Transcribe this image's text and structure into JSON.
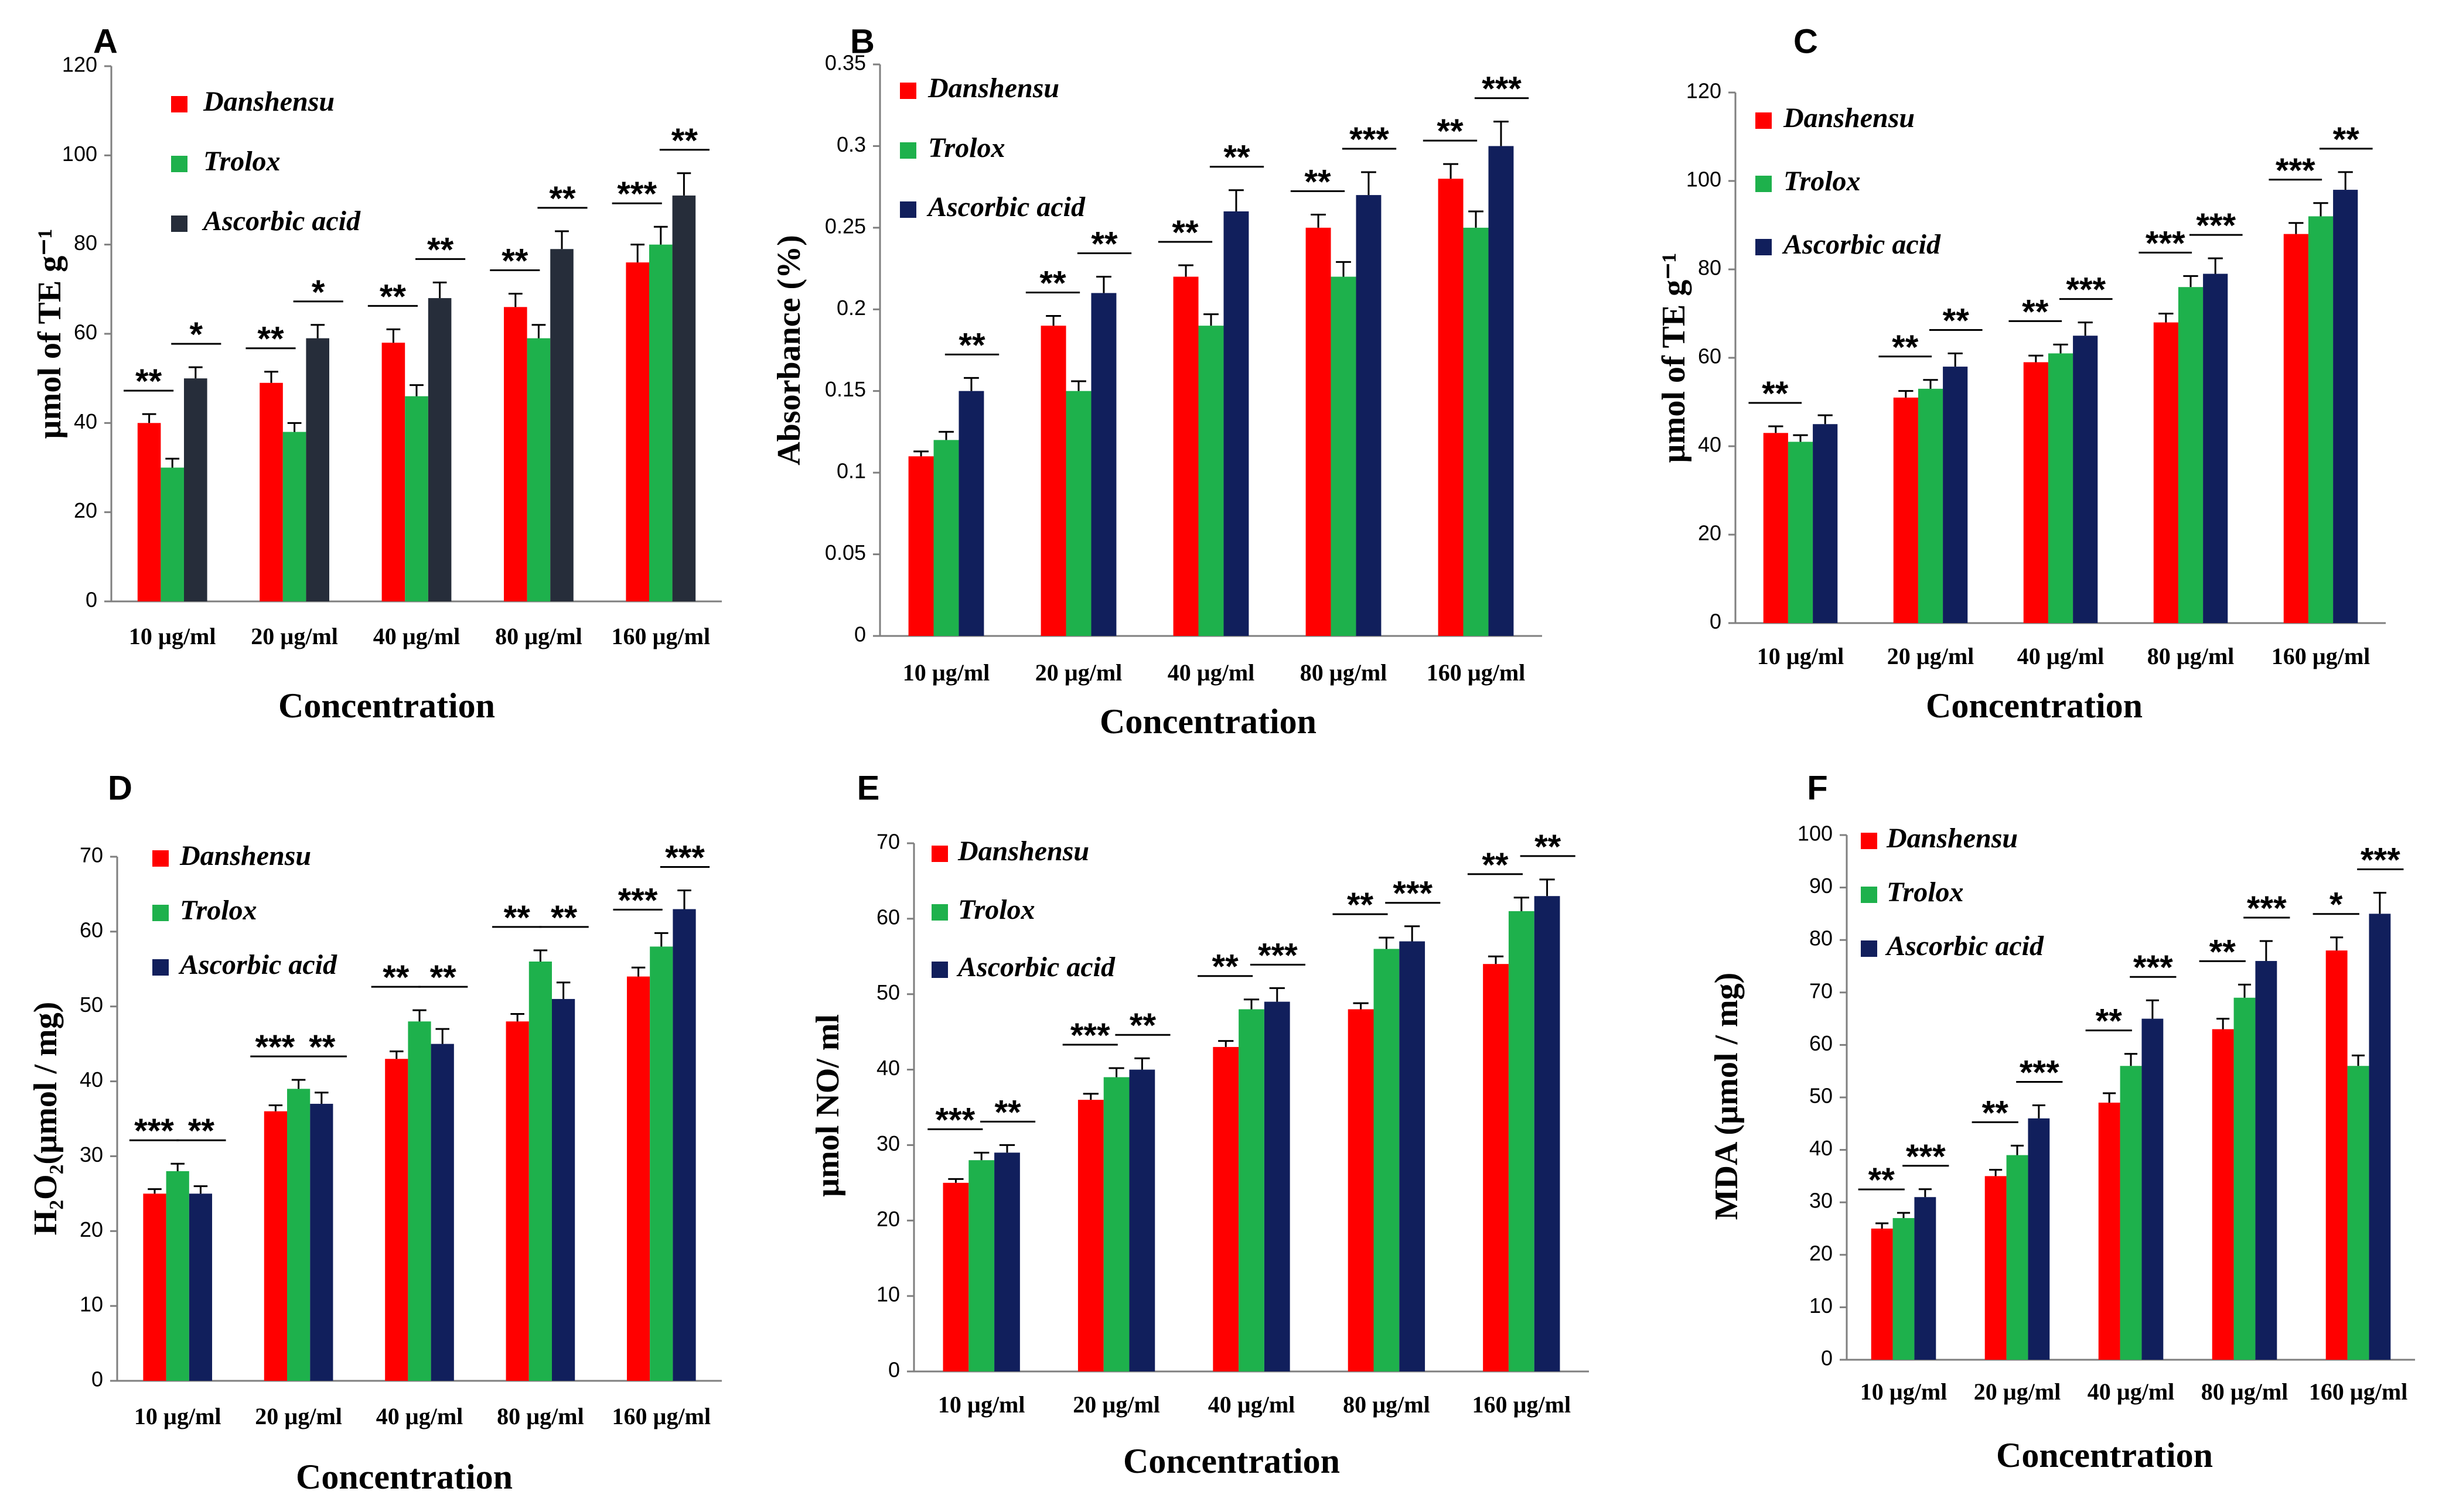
{
  "figure": {
    "colors": [
      "#ff0000",
      "#1eb14c",
      "#111f5c"
    ],
    "colors_A": [
      "#ff0000",
      "#1eb14c",
      "#262d3a"
    ]
  },
  "chart_data": [
    {
      "panel": "A",
      "type": "bar",
      "title": "",
      "xlabel": "Concentration",
      "ylabel": "µmol of TE g⁻¹",
      "ylim": [
        0,
        120
      ],
      "ystep": 20,
      "ytick_labels": [
        "0",
        "20",
        "40",
        "60",
        "80",
        "100",
        "120"
      ],
      "categories": [
        "10 µg/ml",
        "20 µg/ml",
        "40 µg/ml",
        "80 µg/ml",
        "160 µg/ml"
      ],
      "series": [
        {
          "name": "Danshensu",
          "values": [
            40,
            49,
            58,
            66,
            76
          ],
          "errors": [
            2,
            2.5,
            3,
            3,
            4
          ]
        },
        {
          "name": "Trolox",
          "values": [
            30,
            38,
            46,
            59,
            80
          ],
          "errors": [
            2,
            2,
            2.5,
            3,
            4
          ]
        },
        {
          "name": "Ascorbic acid",
          "values": [
            50,
            59,
            68,
            79,
            91
          ],
          "errors": [
            2.5,
            3,
            3.5,
            4,
            5
          ]
        }
      ],
      "significance": [
        [
          "**",
          "*"
        ],
        [
          "**",
          "*"
        ],
        [
          "**",
          "**"
        ],
        [
          "**",
          "**"
        ],
        [
          "***",
          "**"
        ]
      ]
    },
    {
      "panel": "B",
      "type": "bar",
      "title": "",
      "xlabel": "Concentration",
      "ylabel": "Absorbance (%)",
      "ylim": [
        0,
        0.35
      ],
      "ystep": 0.05,
      "ytick_labels": [
        "0",
        "0.05",
        "0.1",
        "0.15",
        "0.2",
        "0.25",
        "0.3",
        "0.35"
      ],
      "categories": [
        "10 µg/ml",
        "20 µg/ml",
        "40 µg/ml",
        "80 µg/ml",
        "160 µg/ml"
      ],
      "series": [
        {
          "name": "Danshensu",
          "values": [
            0.11,
            0.19,
            0.22,
            0.25,
            0.28
          ],
          "errors": [
            0.003,
            0.006,
            0.007,
            0.008,
            0.009
          ]
        },
        {
          "name": "Trolox",
          "values": [
            0.12,
            0.15,
            0.19,
            0.22,
            0.25
          ],
          "errors": [
            0.005,
            0.006,
            0.007,
            0.009,
            0.01
          ]
        },
        {
          "name": "Ascorbic acid",
          "values": [
            0.15,
            0.21,
            0.26,
            0.27,
            0.3
          ],
          "errors": [
            0.008,
            0.01,
            0.013,
            0.014,
            0.015
          ]
        }
      ],
      "significance": [
        [
          null,
          "**"
        ],
        [
          "**",
          "**"
        ],
        [
          "**",
          "**"
        ],
        [
          "**",
          "***"
        ],
        [
          "**",
          "***"
        ]
      ]
    },
    {
      "panel": "C",
      "type": "bar",
      "title": "",
      "xlabel": "Concentration",
      "ylabel": "µmol of TE g⁻¹",
      "ylim": [
        0,
        120
      ],
      "ystep": 20,
      "ytick_labels": [
        "0",
        "20",
        "40",
        "60",
        "80",
        "100",
        "120"
      ],
      "categories": [
        "10 µg/ml",
        "20 µg/ml",
        "40 µg/ml",
        "80 µg/ml",
        "160 µg/ml"
      ],
      "series": [
        {
          "name": "Danshensu",
          "values": [
            43,
            51,
            59,
            68,
            88
          ],
          "errors": [
            1.5,
            1.5,
            1.5,
            2,
            2.5
          ]
        },
        {
          "name": "Trolox",
          "values": [
            41,
            53,
            61,
            76,
            92
          ],
          "errors": [
            1.5,
            2,
            2,
            2.5,
            3
          ]
        },
        {
          "name": "Ascorbic acid",
          "values": [
            45,
            58,
            65,
            79,
            98
          ],
          "errors": [
            2,
            3,
            3,
            3.5,
            4
          ]
        }
      ],
      "significance": [
        [
          "**",
          null
        ],
        [
          "**",
          "**"
        ],
        [
          "**",
          "***"
        ],
        [
          "***",
          "***"
        ],
        [
          "***",
          "**"
        ]
      ]
    },
    {
      "panel": "D",
      "type": "bar",
      "title": "",
      "xlabel": "Concentration",
      "ylabel": "H₂O₂(µmol / mg)",
      "ylim": [
        0,
        70
      ],
      "ystep": 10,
      "ytick_labels": [
        "0",
        "10",
        "20",
        "30",
        "40",
        "50",
        "60",
        "70"
      ],
      "categories": [
        "10 µg/ml",
        "20 µg/ml",
        "40 µg/ml",
        "80 µg/ml",
        "160 µg/ml"
      ],
      "series": [
        {
          "name": "Danshensu",
          "values": [
            25,
            36,
            43,
            48,
            54
          ],
          "errors": [
            0.6,
            0.8,
            1,
            1,
            1.2
          ]
        },
        {
          "name": "Trolox",
          "values": [
            28,
            39,
            48,
            56,
            58
          ],
          "errors": [
            1,
            1.2,
            1.5,
            1.5,
            1.8
          ]
        },
        {
          "name": "Ascorbic acid",
          "values": [
            25,
            37,
            45,
            51,
            63
          ],
          "errors": [
            1,
            1.5,
            2,
            2.2,
            2.5
          ]
        }
      ],
      "significance": [
        [
          "***",
          "**"
        ],
        [
          "***",
          "**"
        ],
        [
          "**",
          "**"
        ],
        [
          "**",
          "**"
        ],
        [
          "***",
          "***"
        ]
      ]
    },
    {
      "panel": "E",
      "type": "bar",
      "title": "",
      "xlabel": "Concentration",
      "ylabel": "µmol NO/ ml",
      "ylim": [
        0,
        70
      ],
      "ystep": 10,
      "ytick_labels": [
        "0",
        "10",
        "20",
        "30",
        "40",
        "50",
        "60",
        "70"
      ],
      "categories": [
        "10 µg/ml",
        "20 µg/ml",
        "40 µg/ml",
        "80 µg/ml",
        "160 µg/ml"
      ],
      "series": [
        {
          "name": "Danshensu",
          "values": [
            25,
            36,
            43,
            48,
            54
          ],
          "errors": [
            0.5,
            0.8,
            0.8,
            0.8,
            1
          ]
        },
        {
          "name": "Trolox",
          "values": [
            28,
            39,
            48,
            56,
            61
          ],
          "errors": [
            1,
            1.2,
            1.3,
            1.5,
            1.8
          ]
        },
        {
          "name": "Ascorbic acid",
          "values": [
            29,
            40,
            49,
            57,
            63
          ],
          "errors": [
            1,
            1.5,
            1.8,
            2,
            2.2
          ]
        }
      ],
      "significance": [
        [
          "***",
          "**"
        ],
        [
          "***",
          "**"
        ],
        [
          "**",
          "***"
        ],
        [
          "**",
          "***"
        ],
        [
          "**",
          "**"
        ]
      ]
    },
    {
      "panel": "F",
      "type": "bar",
      "title": "",
      "xlabel": "Concentration",
      "ylabel": "MDA (µmol / mg)",
      "ylim": [
        0,
        100
      ],
      "ystep": 10,
      "ytick_labels": [
        "0",
        "10",
        "20",
        "30",
        "40",
        "50",
        "60",
        "70",
        "80",
        "90",
        "100"
      ],
      "categories": [
        "10 µg/ml",
        "20 µg/ml",
        "40 µg/ml",
        "80 µg/ml",
        "160 µg/ml"
      ],
      "series": [
        {
          "name": "Danshensu",
          "values": [
            25,
            35,
            49,
            63,
            78
          ],
          "errors": [
            1,
            1.2,
            1.8,
            2,
            2.5
          ]
        },
        {
          "name": "Trolox",
          "values": [
            27,
            39,
            56,
            69,
            56
          ],
          "errors": [
            1,
            1.8,
            2.3,
            2.5,
            2
          ]
        },
        {
          "name": "Ascorbic acid",
          "values": [
            31,
            46,
            65,
            76,
            85
          ],
          "errors": [
            1.5,
            2.5,
            3.5,
            3.8,
            4
          ]
        }
      ],
      "significance": [
        [
          "**",
          "***"
        ],
        [
          "**",
          "***"
        ],
        [
          "**",
          "***"
        ],
        [
          "**",
          "***"
        ],
        [
          "*",
          "***"
        ]
      ]
    }
  ]
}
